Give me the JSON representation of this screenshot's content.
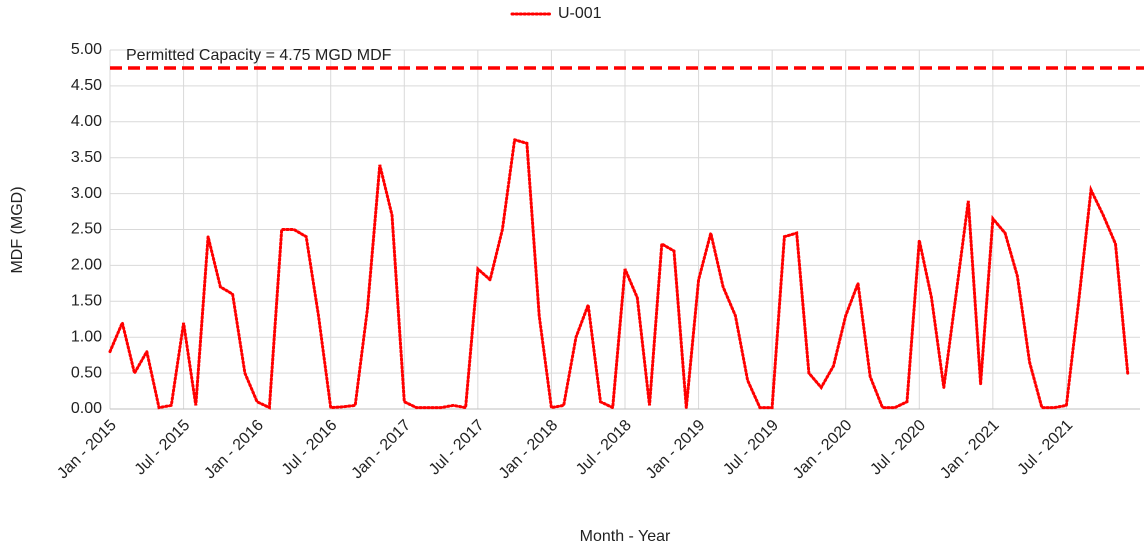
{
  "chart_data": {
    "type": "line",
    "legend_position": "top",
    "x_axis_label": "Month - Year",
    "y_axis_label": "MDF (MGD)",
    "grid": true,
    "reference_line": {
      "value": 4.75,
      "color": "#ff0000",
      "label": "Permitted Capacity = 4.75 MGD MDF"
    },
    "xlim": [
      "2015-01",
      "2022-01"
    ],
    "xticks": [
      {
        "value": "2015-01",
        "label": "Jan - 2015"
      },
      {
        "value": "2015-07",
        "label": "Jul - 2015"
      },
      {
        "value": "2016-01",
        "label": "Jan - 2016"
      },
      {
        "value": "2016-07",
        "label": "Jul - 2016"
      },
      {
        "value": "2017-01",
        "label": "Jan - 2017"
      },
      {
        "value": "2017-07",
        "label": "Jul - 2017"
      },
      {
        "value": "2018-01",
        "label": "Jan - 2018"
      },
      {
        "value": "2018-07",
        "label": "Jul - 2018"
      },
      {
        "value": "2019-01",
        "label": "Jan - 2019"
      },
      {
        "value": "2019-07",
        "label": "Jul - 2019"
      },
      {
        "value": "2020-01",
        "label": "Jan - 2020"
      },
      {
        "value": "2020-07",
        "label": "Jul - 2020"
      },
      {
        "value": "2021-01",
        "label": "Jan - 2021"
      },
      {
        "value": "2021-07",
        "label": "Jul - 2021"
      }
    ],
    "ylim": [
      0,
      5
    ],
    "yticks": [
      {
        "value": 0,
        "label": "0.00"
      },
      {
        "value": 0.5,
        "label": "0.50"
      },
      {
        "value": 1,
        "label": "1.00"
      },
      {
        "value": 1.5,
        "label": "1.50"
      },
      {
        "value": 2,
        "label": "2.00"
      },
      {
        "value": 2.5,
        "label": "2.50"
      },
      {
        "value": 3,
        "label": "3.00"
      },
      {
        "value": 3.5,
        "label": "3.50"
      },
      {
        "value": 4,
        "label": "4.00"
      },
      {
        "value": 4.5,
        "label": "4.50"
      },
      {
        "value": 5,
        "label": "5.00"
      }
    ],
    "x": [
      "2015-01",
      "2015-02",
      "2015-03",
      "2015-04",
      "2015-05",
      "2015-06",
      "2015-07",
      "2015-08",
      "2015-09",
      "2015-10",
      "2015-11",
      "2015-12",
      "2016-01",
      "2016-02",
      "2016-03",
      "2016-04",
      "2016-05",
      "2016-06",
      "2016-07",
      "2016-08",
      "2016-09",
      "2016-10",
      "2016-11",
      "2016-12",
      "2017-01",
      "2017-02",
      "2017-03",
      "2017-04",
      "2017-05",
      "2017-06",
      "2017-07",
      "2017-08",
      "2017-09",
      "2017-10",
      "2017-11",
      "2017-12",
      "2018-01",
      "2018-02",
      "2018-03",
      "2018-04",
      "2018-05",
      "2018-06",
      "2018-07",
      "2018-08",
      "2018-09",
      "2018-10",
      "2018-11",
      "2018-12",
      "2019-01",
      "2019-02",
      "2019-03",
      "2019-04",
      "2019-05",
      "2019-06",
      "2019-07",
      "2019-08",
      "2019-09",
      "2019-10",
      "2019-11",
      "2019-12",
      "2020-01",
      "2020-02",
      "2020-03",
      "2020-04",
      "2020-05",
      "2020-06",
      "2020-07",
      "2020-08",
      "2020-09",
      "2020-10",
      "2020-11",
      "2020-12",
      "2021-01",
      "2021-02",
      "2021-03",
      "2021-04",
      "2021-05",
      "2021-06",
      "2021-07",
      "2021-08",
      "2021-09",
      "2021-10",
      "2021-11",
      "2021-12"
    ],
    "series": [
      {
        "name": "U-001",
        "color": "#ff0000",
        "values": [
          0.8,
          1.2,
          0.5,
          0.8,
          0.02,
          0.05,
          1.2,
          0.05,
          2.4,
          1.7,
          1.6,
          0.5,
          0.1,
          0.02,
          2.5,
          2.5,
          2.4,
          1.3,
          0.02,
          0.03,
          0.05,
          1.4,
          3.4,
          2.7,
          0.1,
          0.02,
          0.02,
          0.02,
          0.05,
          0.02,
          1.95,
          1.8,
          2.5,
          3.75,
          3.7,
          1.3,
          0.02,
          0.05,
          1.0,
          1.45,
          0.1,
          0.02,
          1.95,
          1.55,
          0.05,
          2.3,
          2.2,
          0.02,
          1.8,
          2.45,
          1.7,
          1.3,
          0.4,
          0.02,
          0.02,
          2.4,
          2.45,
          0.5,
          0.3,
          0.6,
          1.3,
          1.75,
          0.45,
          0.02,
          0.02,
          0.1,
          2.35,
          1.55,
          0.3,
          1.6,
          2.9,
          0.35,
          2.65,
          2.45,
          1.85,
          0.65,
          0.02,
          0.02,
          0.05,
          1.5,
          3.05,
          2.7,
          2.3,
          0.5
        ]
      }
    ]
  }
}
